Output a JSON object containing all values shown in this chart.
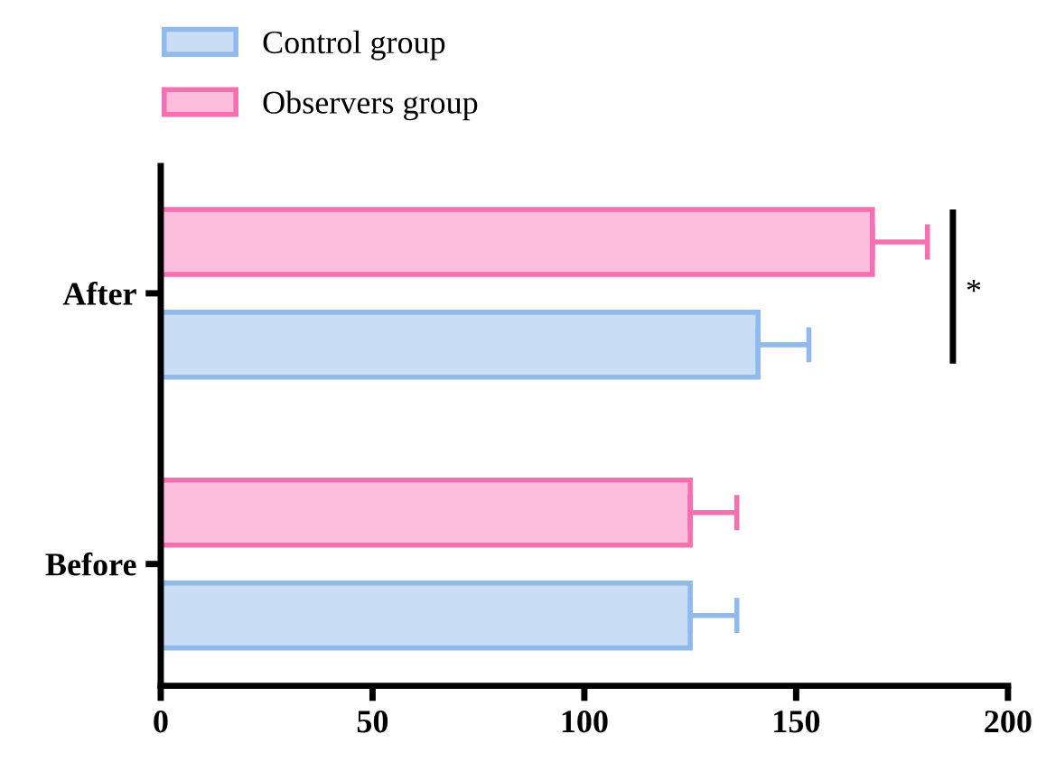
{
  "chart_data": {
    "type": "bar",
    "orientation": "horizontal",
    "categories": [
      "After",
      "Before"
    ],
    "series": [
      {
        "name": "Control group",
        "color": "#c9ddf5",
        "values": [
          141,
          125
        ],
        "errors": [
          [
            141,
            153
          ],
          [
            125,
            136
          ]
        ]
      },
      {
        "name": "Observers group",
        "color": "#fdbedd",
        "values": [
          168,
          125
        ],
        "errors": [
          [
            168,
            181
          ],
          [
            125,
            136
          ]
        ]
      }
    ],
    "xlim": [
      0,
      200
    ],
    "xticks": [
      0,
      50,
      100,
      150,
      200
    ],
    "annotations": [
      "*"
    ],
    "grid": false,
    "legend": "top left"
  }
}
